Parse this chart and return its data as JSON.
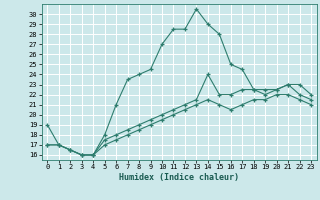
{
  "xlabel": "Humidex (Indice chaleur)",
  "xlim": [
    -0.5,
    23.5
  ],
  "ylim": [
    15.5,
    31
  ],
  "xtick_labels": [
    "0",
    "1",
    "2",
    "3",
    "4",
    "5",
    "6",
    "7",
    "8",
    "9",
    "10",
    "11",
    "12",
    "13",
    "14",
    "15",
    "16",
    "17",
    "18",
    "19",
    "20",
    "21",
    "22",
    "23"
  ],
  "ytick_values": [
    16,
    17,
    18,
    19,
    20,
    21,
    22,
    23,
    24,
    25,
    26,
    27,
    28,
    29,
    30
  ],
  "bg_color": "#cce8ea",
  "grid_color": "#ffffff",
  "line_color": "#2e7d6e",
  "series": [
    {
      "x": [
        0,
        1,
        2,
        3,
        4,
        5,
        6,
        7,
        8,
        9,
        10,
        11,
        12,
        13,
        14,
        15,
        16,
        17,
        18,
        19,
        20,
        21,
        22,
        23
      ],
      "y": [
        19,
        17,
        16.5,
        16,
        16,
        18,
        21,
        23.5,
        24,
        24.5,
        27,
        28.5,
        28.5,
        30.5,
        29,
        28,
        25,
        24.5,
        22.5,
        22,
        22.5,
        23,
        22,
        21.5
      ]
    },
    {
      "x": [
        0,
        1,
        2,
        3,
        4,
        5,
        6,
        7,
        8,
        9,
        10,
        11,
        12,
        13,
        14,
        15,
        16,
        17,
        18,
        19,
        20,
        21,
        22,
        23
      ],
      "y": [
        17,
        17,
        16.5,
        16,
        16,
        17.5,
        18,
        18.5,
        19,
        19.5,
        20,
        20.5,
        21,
        21.5,
        24,
        22,
        22,
        22.5,
        22.5,
        22.5,
        22.5,
        23,
        23,
        22
      ]
    },
    {
      "x": [
        0,
        1,
        2,
        3,
        4,
        5,
        6,
        7,
        8,
        9,
        10,
        11,
        12,
        13,
        14,
        15,
        16,
        17,
        18,
        19,
        20,
        21,
        22,
        23
      ],
      "y": [
        17,
        17,
        16.5,
        16,
        16,
        17,
        17.5,
        18,
        18.5,
        19,
        19.5,
        20,
        20.5,
        21,
        21.5,
        21,
        20.5,
        21,
        21.5,
        21.5,
        22,
        22,
        21.5,
        21
      ]
    }
  ]
}
